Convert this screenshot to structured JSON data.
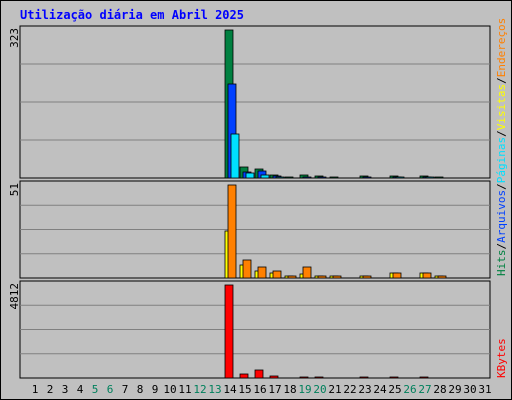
{
  "chart_data": {
    "type": "bar",
    "title": "Utilização diária em Abril 2025",
    "x": [
      "1",
      "2",
      "3",
      "4",
      "5",
      "6",
      "7",
      "8",
      "9",
      "10",
      "11",
      "12",
      "13",
      "14",
      "15",
      "16",
      "17",
      "18",
      "19",
      "20",
      "21",
      "22",
      "23",
      "24",
      "25",
      "26",
      "27",
      "28",
      "29",
      "30",
      "31"
    ],
    "weekend_days": [
      "5",
      "6",
      "12",
      "13",
      "19",
      "20",
      "26",
      "27"
    ],
    "panels": [
      {
        "name": "top",
        "max_label": "323",
        "ylim": [
          0,
          323
        ],
        "grid": true,
        "series": [
          {
            "name": "Hits",
            "color": "#008040",
            "values": [
              0,
              0,
              0,
              0,
              0,
              0,
              0,
              0,
              0,
              0,
              0,
              0,
              0,
              323,
              24,
              20,
              6,
              2,
              6,
              4,
              2,
              0,
              5,
              0,
              4,
              0,
              4,
              2,
              0,
              0,
              0
            ]
          },
          {
            "name": "Arquivos",
            "color": "#0040ff",
            "values": [
              0,
              0,
              0,
              0,
              0,
              0,
              0,
              0,
              0,
              0,
              0,
              0,
              0,
              205,
              13,
              16,
              4,
              1,
              3,
              2,
              1,
              0,
              3,
              0,
              3,
              0,
              3,
              1,
              0,
              0,
              0
            ]
          },
          {
            "name": "Páginas",
            "color": "#00e0ff",
            "values": [
              0,
              0,
              0,
              0,
              0,
              0,
              0,
              0,
              0,
              0,
              0,
              0,
              0,
              97,
              10,
              6,
              2,
              0,
              1,
              1,
              0,
              0,
              1,
              0,
              3,
              0,
              3,
              0,
              0,
              0,
              0
            ]
          }
        ]
      },
      {
        "name": "middle",
        "max_label": "51",
        "ylim": [
          0,
          51
        ],
        "grid": true,
        "series": [
          {
            "name": "Visitas",
            "color": "#ffff00",
            "values": [
              0,
              0,
              0,
              0,
              0,
              0,
              0,
              0,
              0,
              0,
              0,
              0,
              0,
              26,
              7,
              4,
              3,
              1,
              2,
              1,
              1,
              0,
              1,
              0,
              3,
              0,
              3,
              1,
              0,
              0,
              0
            ]
          },
          {
            "name": "Endereços",
            "color": "#ff8000",
            "values": [
              0,
              0,
              0,
              0,
              0,
              0,
              0,
              0,
              0,
              0,
              0,
              0,
              0,
              51,
              10,
              6,
              4,
              1,
              6,
              1,
              1,
              0,
              1,
              0,
              3,
              0,
              3,
              1,
              0,
              0,
              0
            ]
          }
        ]
      },
      {
        "name": "bottom",
        "max_label": "4812",
        "ylim": [
          0,
          4812
        ],
        "grid": true,
        "series": [
          {
            "name": "KBytes",
            "color": "#ff0000",
            "values": [
              0,
              0,
              0,
              0,
              0,
              0,
              0,
              0,
              0,
              0,
              0,
              0,
              0,
              4812,
              220,
              400,
              90,
              25,
              60,
              30,
              20,
              0,
              30,
              0,
              30,
              0,
              40,
              20,
              0,
              0,
              0
            ]
          }
        ]
      }
    ],
    "legend_top": [
      {
        "label": "Hits",
        "color": "#008040"
      },
      {
        "label": "/",
        "color": "#000000"
      },
      {
        "label": "Arquivos",
        "color": "#0040ff"
      },
      {
        "label": "/",
        "color": "#000000"
      },
      {
        "label": "Páginas",
        "color": "#00e0ff"
      },
      {
        "label": "/",
        "color": "#000000"
      },
      {
        "label": "Visitas",
        "color": "#ffff00"
      },
      {
        "label": "/",
        "color": "#000000"
      },
      {
        "label": "Endereços",
        "color": "#ff8000"
      }
    ],
    "legend_bottom": [
      {
        "label": "KBytes",
        "color": "#ff0000"
      }
    ],
    "colors": {
      "background": "#c0c0c0",
      "title": "#0000ff",
      "weekday_label": "#000000",
      "weekend_label": "#00805c",
      "grid": "#808080"
    }
  }
}
